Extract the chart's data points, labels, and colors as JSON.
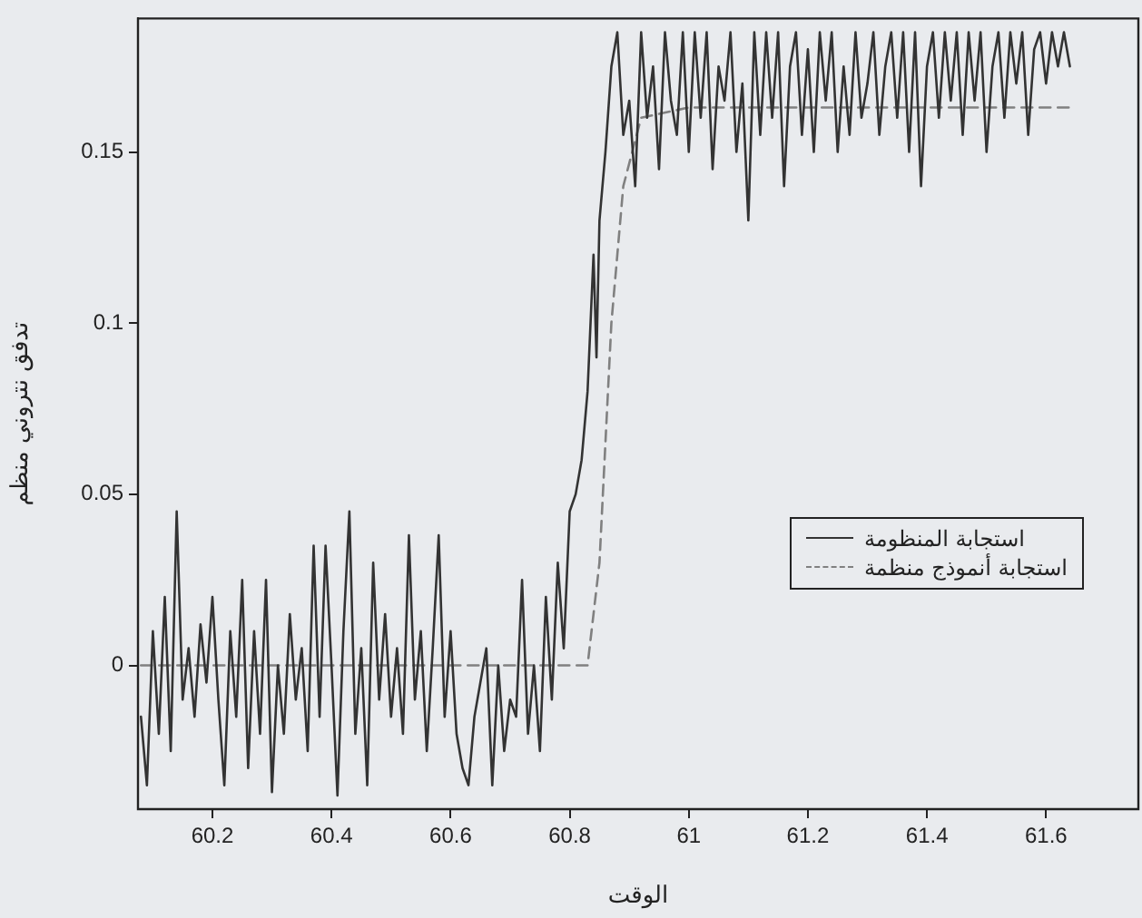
{
  "chart_data": {
    "type": "line",
    "xlabel": "الوقت",
    "ylabel": "تدفق نتروني منظم",
    "xlim": [
      60.075,
      61.755
    ],
    "xticks": [
      60.2,
      60.4,
      60.6,
      60.8,
      61,
      61.2,
      61.4,
      61.6
    ],
    "ylim": [
      -0.042,
      0.189
    ],
    "yticks": [
      0,
      0.05,
      0.1,
      0.15
    ],
    "grid": false,
    "legend": "right",
    "marker": "none",
    "series": [
      {
        "name": "استجابة المنظومة",
        "color": "#333333",
        "line_style": "solid",
        "x": [
          60.08,
          60.09,
          60.1,
          60.11,
          60.12,
          60.13,
          60.14,
          60.15,
          60.16,
          60.17,
          60.18,
          60.19,
          60.2,
          60.21,
          60.22,
          60.23,
          60.24,
          60.25,
          60.26,
          60.27,
          60.28,
          60.29,
          60.3,
          60.31,
          60.32,
          60.33,
          60.34,
          60.35,
          60.36,
          60.37,
          60.38,
          60.39,
          60.4,
          60.41,
          60.42,
          60.43,
          60.44,
          60.45,
          60.46,
          60.47,
          60.48,
          60.49,
          60.5,
          60.51,
          60.52,
          60.53,
          60.54,
          60.55,
          60.56,
          60.57,
          60.58,
          60.59,
          60.6,
          60.61,
          60.62,
          60.63,
          60.64,
          60.65,
          60.66,
          60.67,
          60.68,
          60.69,
          60.7,
          60.71,
          60.72,
          60.73,
          60.74,
          60.75,
          60.76,
          60.77,
          60.78,
          60.79,
          60.8,
          60.81,
          60.82,
          60.83,
          60.84,
          60.845,
          60.85,
          60.86,
          60.87,
          60.88,
          60.89,
          60.9,
          60.91,
          60.92,
          60.93,
          60.94,
          60.95,
          60.96,
          60.97,
          60.98,
          60.99,
          61.0,
          61.01,
          61.02,
          61.03,
          61.04,
          61.05,
          61.06,
          61.07,
          61.08,
          61.09,
          61.1,
          61.11,
          61.12,
          61.13,
          61.14,
          61.15,
          61.16,
          61.17,
          61.18,
          61.19,
          61.2,
          61.21,
          61.22,
          61.23,
          61.24,
          61.25,
          61.26,
          61.27,
          61.28,
          61.29,
          61.3,
          61.31,
          61.32,
          61.33,
          61.34,
          61.35,
          61.36,
          61.37,
          61.38,
          61.39,
          61.4,
          61.41,
          61.42,
          61.43,
          61.44,
          61.45,
          61.46,
          61.47,
          61.48,
          61.49,
          61.5,
          61.51,
          61.52,
          61.53,
          61.54,
          61.55,
          61.56,
          61.57,
          61.58,
          61.59,
          61.6,
          61.61,
          61.62,
          61.63,
          61.64
        ],
        "values": [
          -0.015,
          -0.035,
          0.01,
          -0.02,
          0.02,
          -0.025,
          0.045,
          -0.01,
          0.005,
          -0.015,
          0.012,
          -0.005,
          0.02,
          -0.01,
          -0.035,
          0.01,
          -0.015,
          0.025,
          -0.03,
          0.01,
          -0.02,
          0.025,
          -0.037,
          0.0,
          -0.02,
          0.015,
          -0.01,
          0.005,
          -0.025,
          0.035,
          -0.015,
          0.035,
          0.0,
          -0.038,
          0.01,
          0.045,
          -0.02,
          0.005,
          -0.035,
          0.03,
          -0.01,
          0.015,
          -0.015,
          0.005,
          -0.02,
          0.038,
          -0.01,
          0.01,
          -0.025,
          0.005,
          0.038,
          -0.015,
          0.01,
          -0.02,
          -0.03,
          -0.035,
          -0.015,
          -0.005,
          0.005,
          -0.035,
          0.0,
          -0.025,
          -0.01,
          -0.015,
          0.025,
          -0.02,
          0.0,
          -0.025,
          0.02,
          -0.01,
          0.03,
          0.005,
          0.045,
          0.05,
          0.06,
          0.08,
          0.12,
          0.09,
          0.13,
          0.15,
          0.175,
          0.185,
          0.155,
          0.165,
          0.14,
          0.185,
          0.16,
          0.175,
          0.145,
          0.185,
          0.165,
          0.155,
          0.185,
          0.15,
          0.185,
          0.16,
          0.185,
          0.145,
          0.175,
          0.165,
          0.185,
          0.15,
          0.17,
          0.13,
          0.185,
          0.155,
          0.185,
          0.16,
          0.185,
          0.14,
          0.175,
          0.185,
          0.155,
          0.18,
          0.15,
          0.185,
          0.165,
          0.185,
          0.15,
          0.175,
          0.155,
          0.185,
          0.16,
          0.17,
          0.185,
          0.155,
          0.175,
          0.185,
          0.16,
          0.185,
          0.15,
          0.185,
          0.14,
          0.175,
          0.185,
          0.16,
          0.185,
          0.165,
          0.185,
          0.155,
          0.185,
          0.165,
          0.185,
          0.15,
          0.175,
          0.185,
          0.16,
          0.185,
          0.17,
          0.185,
          0.155,
          0.18,
          0.185,
          0.17,
          0.185,
          0.175,
          0.185,
          0.175
        ]
      },
      {
        "name": "استجابة أنموذج منظمة",
        "color": "#808080",
        "line_style": "dashed",
        "x": [
          60.08,
          60.83,
          60.85,
          60.87,
          60.89,
          60.92,
          61.0,
          61.64
        ],
        "values": [
          0,
          0,
          0.03,
          0.1,
          0.14,
          0.16,
          0.163,
          0.163
        ]
      }
    ]
  }
}
